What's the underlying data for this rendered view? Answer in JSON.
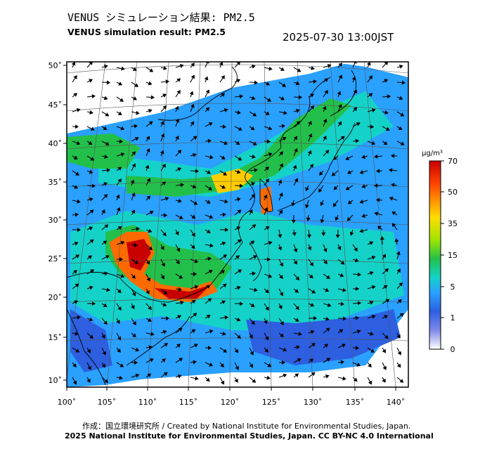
{
  "header": {
    "title_jp": "VENUS シミュレーション結果: PM2.5",
    "title_en": "VENUS simulation result: PM2.5",
    "timestamp": "2025-07-30 13:00JST"
  },
  "map": {
    "lon_labels": [
      "100˚",
      "105˚",
      "110˚",
      "115˚",
      "120˚",
      "125˚",
      "130˚",
      "135˚",
      "140˚"
    ],
    "lat_labels": [
      "50˚",
      "45˚",
      "40˚",
      "35˚",
      "30˚",
      "25˚",
      "20˚",
      "15˚",
      "10˚"
    ],
    "lon_range": [
      100,
      141
    ],
    "lat_range": [
      9,
      51
    ],
    "colors": {
      "sea_background": "#ffffff",
      "coast": "#000000",
      "grid": "#555555"
    }
  },
  "legend": {
    "unit": "μg/m³",
    "ticks": [
      "70",
      "50",
      "35",
      "15",
      "5",
      "1",
      "0"
    ],
    "colors": [
      "#c80000",
      "#ff6a00",
      "#ffcc00",
      "#9fe500",
      "#22c04a",
      "#14d2c8",
      "#2aa0ff",
      "#2d5fe0",
      "#6f7fe6",
      "#ffffff"
    ]
  },
  "footer": {
    "credit": "作成：国立環境研究所 / Created by National Institute for Environmental Studies, Japan.",
    "license": "2025 National Institute for Environmental Studies, Japan. CC BY-NC 4.0 International"
  }
}
